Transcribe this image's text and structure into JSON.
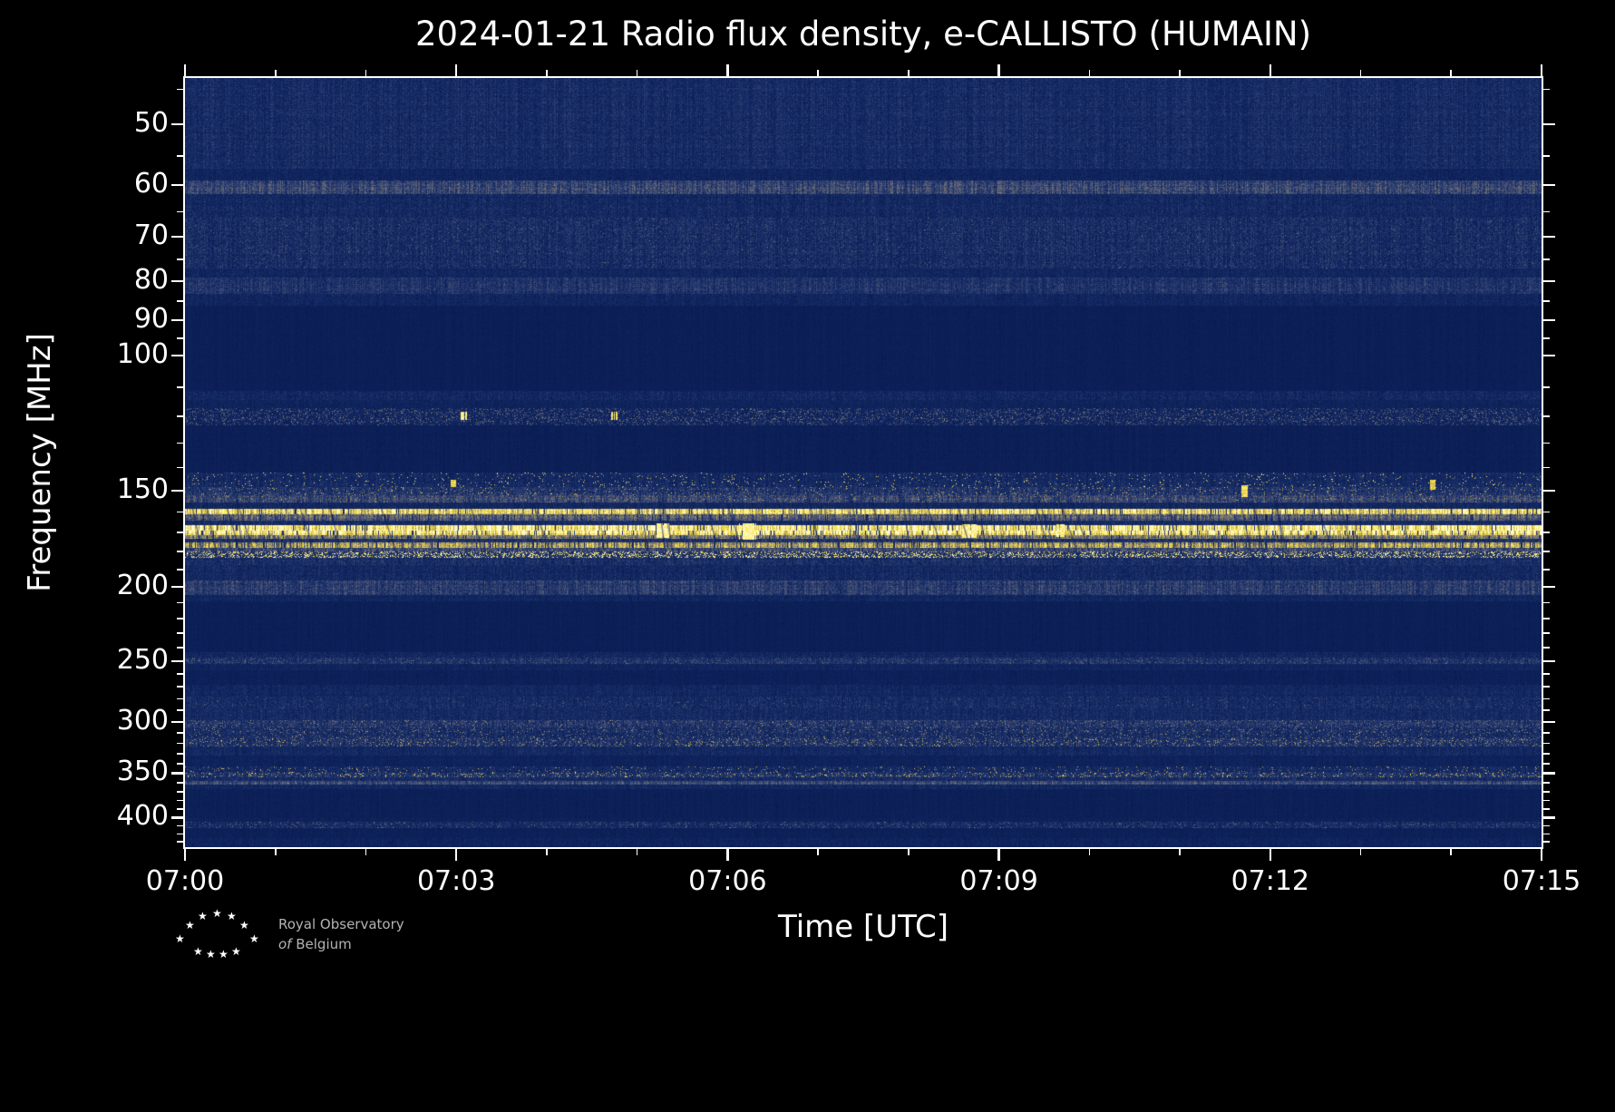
{
  "figure": {
    "background": "#000000",
    "text_color": "#ffffff"
  },
  "chart_data": {
    "type": "heatmap",
    "title": "2024-01-21 Radio flux density, e-CALLISTO (HUMAIN)",
    "date": "2024-01-21",
    "station": "HUMAIN",
    "instrument": "e-CALLISTO",
    "xlabel": "Time [UTC]",
    "ylabel": "Frequency [MHz]",
    "description": "Solar radio dynamic spectrum. Time 07:00-07:15 UTC, frequency ~43-437 MHz on an inverted log axis. Dark navy background noise with persistent horizontal interference bands; the brightest saturated yellow RFI bands lie between ~158 and 183 MHz, with weaker speckled bands near 120, 145-155, 200, 250, 300-320, 350-360 and 408 MHz.",
    "x_axis": {
      "start": "07:00",
      "end": "07:15",
      "major_tick_minutes": [
        0,
        3,
        6,
        9,
        12,
        15
      ],
      "major_tick_labels": [
        "07:00",
        "07:03",
        "07:06",
        "07:09",
        "07:12",
        "07:15"
      ],
      "minor_tick_every_minutes": 1,
      "span_minutes": 15
    },
    "y_axis": {
      "scale": "log",
      "direction": "increasing-downward",
      "ticks": [
        50,
        60,
        70,
        80,
        90,
        100,
        150,
        200,
        250,
        300,
        350,
        400
      ],
      "range_mhz": [
        43.5,
        437
      ]
    },
    "colormap": {
      "stops": [
        [
          0.0,
          [
            8,
            26,
            80
          ]
        ],
        [
          0.18,
          [
            22,
            44,
            102
          ]
        ],
        [
          0.32,
          [
            58,
            72,
            116
          ]
        ],
        [
          0.45,
          [
            108,
            107,
            114
          ]
        ],
        [
          0.58,
          [
            156,
            144,
            104
          ]
        ],
        [
          0.7,
          [
            215,
            190,
            74
          ]
        ],
        [
          0.82,
          [
            252,
            228,
            74
          ]
        ],
        [
          1.0,
          [
            255,
            252,
            208
          ]
        ]
      ],
      "background": "#0b1e55",
      "bright": "#ffe84e"
    },
    "seed": 42,
    "stripe_amp": 0.2,
    "bands": [
      {
        "f0": 43.5,
        "f1": 57,
        "base": 0.16,
        "noise": 0.1
      },
      {
        "f0": 57,
        "f1": 59,
        "base": 0.11,
        "noise": 0.08
      },
      {
        "f0": 59,
        "f1": 61.5,
        "base": 0.3,
        "noise": 0.12
      },
      {
        "f0": 61.5,
        "f1": 66,
        "base": 0.14,
        "noise": 0.1
      },
      {
        "f0": 66,
        "f1": 77,
        "base": 0.17,
        "noise": 0.12,
        "sp": 0.015,
        "sv": 0.38
      },
      {
        "f0": 77,
        "f1": 79,
        "base": 0.12,
        "noise": 0.08
      },
      {
        "f0": 79,
        "f1": 83,
        "base": 0.21,
        "noise": 0.1
      },
      {
        "f0": 83,
        "f1": 86,
        "base": 0.12,
        "noise": 0.08
      },
      {
        "f0": 86,
        "f1": 111,
        "base": 0.055,
        "noise": 0.03
      },
      {
        "f0": 111,
        "f1": 114,
        "base": 0.13,
        "noise": 0.09
      },
      {
        "f0": 114,
        "f1": 117,
        "base": 0.1,
        "noise": 0.07
      },
      {
        "f0": 117,
        "f1": 123,
        "base": 0.12,
        "noise": 0.09,
        "sp": 0.14,
        "sv": 0.42
      },
      {
        "f0": 123,
        "f1": 142,
        "base": 0.06,
        "noise": 0.035
      },
      {
        "f0": 142,
        "f1": 148,
        "base": 0.15,
        "noise": 0.1,
        "sp": 0.035,
        "sv": 0.75
      },
      {
        "f0": 148,
        "f1": 152,
        "base": 0.21,
        "noise": 0.11,
        "sp": 0.05,
        "sv": 0.6
      },
      {
        "f0": 152,
        "f1": 155,
        "base": 0.3,
        "noise": 0.12,
        "sp": 0.04,
        "sv": 0.55
      },
      {
        "f0": 155,
        "f1": 158,
        "base": 0.13,
        "noise": 0.08
      },
      {
        "f0": 158,
        "f1": 161,
        "base": 0.76,
        "noise": 0.14,
        "drop": 0.05
      },
      {
        "f0": 161,
        "f1": 164,
        "base": 0.38,
        "noise": 0.12,
        "drop": 0.04
      },
      {
        "f0": 164,
        "f1": 166,
        "base": 0.16,
        "noise": 0.09
      },
      {
        "f0": 166,
        "f1": 169,
        "base": 0.92,
        "noise": 0.1,
        "drop": 0.07
      },
      {
        "f0": 169,
        "f1": 171,
        "base": 0.84,
        "noise": 0.12,
        "drop": 0.07
      },
      {
        "f0": 171,
        "f1": 173,
        "base": 0.46,
        "noise": 0.12,
        "drop": 0.05
      },
      {
        "f0": 173,
        "f1": 175,
        "base": 0.2,
        "noise": 0.1
      },
      {
        "f0": 175,
        "f1": 178,
        "base": 0.62,
        "noise": 0.15,
        "drop": 0.1
      },
      {
        "f0": 178,
        "f1": 180,
        "base": 0.3,
        "noise": 0.12
      },
      {
        "f0": 180,
        "f1": 183,
        "base": 0.22,
        "noise": 0.1,
        "sp": 0.3,
        "sv": 0.85
      },
      {
        "f0": 183,
        "f1": 187,
        "base": 0.18,
        "noise": 0.1
      },
      {
        "f0": 187,
        "f1": 196,
        "base": 0.14,
        "noise": 0.09
      },
      {
        "f0": 196,
        "f1": 205,
        "base": 0.25,
        "noise": 0.11
      },
      {
        "f0": 205,
        "f1": 209,
        "base": 0.12,
        "noise": 0.07
      },
      {
        "f0": 209,
        "f1": 243,
        "base": 0.06,
        "noise": 0.03
      },
      {
        "f0": 243,
        "f1": 247,
        "base": 0.13,
        "noise": 0.08
      },
      {
        "f0": 247,
        "f1": 252,
        "base": 0.2,
        "noise": 0.1,
        "sp": 0.08,
        "sv": 0.38
      },
      {
        "f0": 252,
        "f1": 257,
        "base": 0.11,
        "noise": 0.07
      },
      {
        "f0": 257,
        "f1": 268,
        "base": 0.07,
        "noise": 0.04
      },
      {
        "f0": 268,
        "f1": 278,
        "base": 0.13,
        "noise": 0.08
      },
      {
        "f0": 278,
        "f1": 288,
        "base": 0.16,
        "noise": 0.1,
        "sp": 0.04,
        "sv": 0.35
      },
      {
        "f0": 288,
        "f1": 298,
        "base": 0.15,
        "noise": 0.09
      },
      {
        "f0": 298,
        "f1": 305,
        "base": 0.21,
        "noise": 0.11,
        "sp": 0.08,
        "sv": 0.45
      },
      {
        "f0": 305,
        "f1": 315,
        "base": 0.17,
        "noise": 0.1,
        "sp": 0.06,
        "sv": 0.5
      },
      {
        "f0": 315,
        "f1": 323,
        "base": 0.19,
        "noise": 0.11,
        "sp": 0.1,
        "sv": 0.55
      },
      {
        "f0": 323,
        "f1": 332,
        "base": 0.14,
        "noise": 0.08
      },
      {
        "f0": 332,
        "f1": 343,
        "base": 0.09,
        "noise": 0.05
      },
      {
        "f0": 343,
        "f1": 349,
        "base": 0.15,
        "noise": 0.09,
        "sp": 0.05,
        "sv": 0.6
      },
      {
        "f0": 349,
        "f1": 354,
        "base": 0.21,
        "noise": 0.11,
        "sp": 0.1,
        "sv": 0.65
      },
      {
        "f0": 354,
        "f1": 358,
        "base": 0.15,
        "noise": 0.08
      },
      {
        "f0": 358,
        "f1": 362,
        "base": 0.32,
        "noise": 0.1
      },
      {
        "f0": 362,
        "f1": 367,
        "base": 0.13,
        "noise": 0.07
      },
      {
        "f0": 367,
        "f1": 400,
        "base": 0.065,
        "noise": 0.035
      },
      {
        "f0": 400,
        "f1": 404,
        "base": 0.08,
        "noise": 0.05
      },
      {
        "f0": 404,
        "f1": 412,
        "base": 0.16,
        "noise": 0.1,
        "sp": 0.07,
        "sv": 0.4
      },
      {
        "f0": 412,
        "f1": 425,
        "base": 0.07,
        "noise": 0.04
      },
      {
        "f0": 425,
        "f1": 437,
        "base": 0.1,
        "noise": 0.07
      }
    ],
    "events": [
      {
        "t": 0.205,
        "w": 0.004,
        "f0": 118.5,
        "f1": 121,
        "v": 0.95
      },
      {
        "t": 0.316,
        "w": 0.004,
        "f0": 118.5,
        "f1": 121,
        "v": 0.9
      },
      {
        "t": 0.198,
        "w": 0.004,
        "f0": 145,
        "f1": 148,
        "v": 0.8
      },
      {
        "t": 0.352,
        "w": 0.009,
        "f0": 165.5,
        "f1": 172.5,
        "v": 1.0
      },
      {
        "t": 0.414,
        "w": 0.013,
        "f0": 165.5,
        "f1": 173.5,
        "v": 1.0
      },
      {
        "t": 0.578,
        "w": 0.01,
        "f0": 166,
        "f1": 172.5,
        "v": 0.97
      },
      {
        "t": 0.645,
        "w": 0.006,
        "f0": 166,
        "f1": 172,
        "v": 0.95
      },
      {
        "t": 0.78,
        "w": 0.005,
        "f0": 147.5,
        "f1": 152.5,
        "v": 0.85
      },
      {
        "t": 0.92,
        "w": 0.004,
        "f0": 145,
        "f1": 149,
        "v": 0.8
      }
    ],
    "scratches": {
      "count": 34,
      "f0": 153,
      "f1": 186,
      "slope_min": 8,
      "slope_max": 26,
      "alpha": 0.5,
      "color": "#0a1c52"
    }
  },
  "logo": {
    "line1": "Royal Observatory",
    "line2_prefix": "of",
    "line2": "Belgium",
    "star_glyph": "★",
    "star_color": "#ffffff",
    "text_color": "#b3b3b3"
  }
}
